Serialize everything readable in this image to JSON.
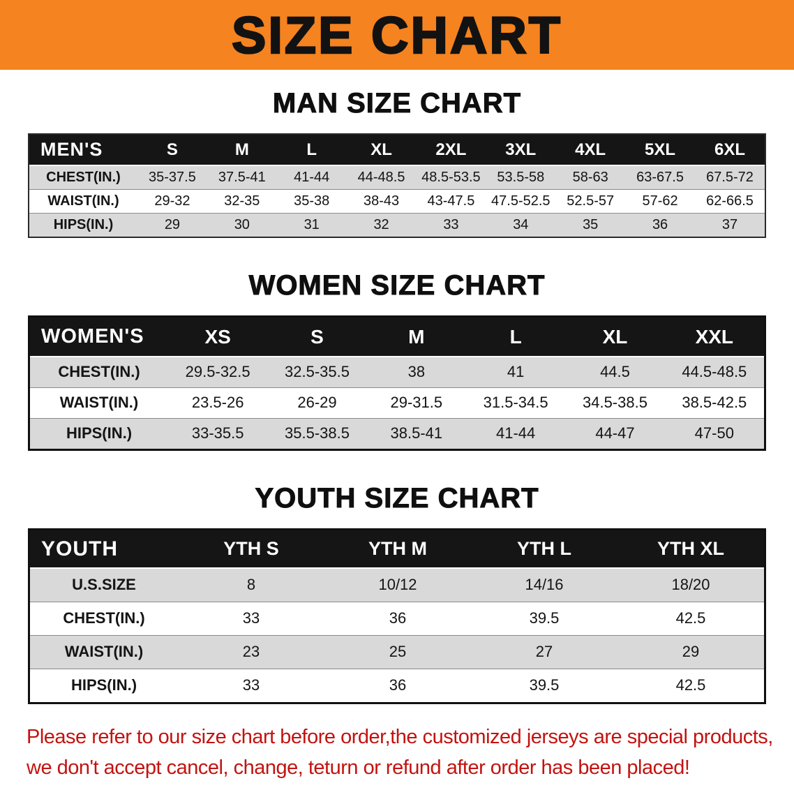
{
  "colors": {
    "banner_bg": "#f5831f",
    "notice_text": "#c31310",
    "header_bg": "#151515",
    "stripe_row": "#d9d9d9"
  },
  "banner": {
    "title": "SIZE CHART"
  },
  "sections": [
    {
      "name": "mens-size-table",
      "heading": "MAN SIZE CHART",
      "label": "MEN'S",
      "sizes": [
        "S",
        "M",
        "L",
        "XL",
        "2XL",
        "3XL",
        "4XL",
        "5XL",
        "6XL"
      ],
      "rows": [
        {
          "label": "CHEST(IN.)",
          "values": [
            "35-37.5",
            "37.5-41",
            "41-44",
            "44-48.5",
            "48.5-53.5",
            "53.5-58",
            "58-63",
            "63-67.5",
            "67.5-72"
          ]
        },
        {
          "label": "WAIST(IN.)",
          "values": [
            "29-32",
            "32-35",
            "35-38",
            "38-43",
            "43-47.5",
            "47.5-52.5",
            "52.5-57",
            "57-62",
            "62-66.5"
          ]
        },
        {
          "label": "HIPS(IN.)",
          "values": [
            "29",
            "30",
            "31",
            "32",
            "33",
            "34",
            "35",
            "36",
            "37"
          ]
        }
      ]
    },
    {
      "name": "womens-size-table",
      "heading": "WOMEN SIZE CHART",
      "label": "WOMEN'S",
      "sizes": [
        "XS",
        "S",
        "M",
        "L",
        "XL",
        "XXL"
      ],
      "rows": [
        {
          "label": "CHEST(IN.)",
          "values": [
            "29.5-32.5",
            "32.5-35.5",
            "38",
            "41",
            "44.5",
            "44.5-48.5"
          ]
        },
        {
          "label": "WAIST(IN.)",
          "values": [
            "23.5-26",
            "26-29",
            "29-31.5",
            "31.5-34.5",
            "34.5-38.5",
            "38.5-42.5"
          ]
        },
        {
          "label": "HIPS(IN.)",
          "values": [
            "33-35.5",
            "35.5-38.5",
            "38.5-41",
            "41-44",
            "44-47",
            "47-50"
          ]
        }
      ]
    },
    {
      "name": "youth-size-table",
      "heading": "YOUTH SIZE CHART",
      "label": "YOUTH",
      "sizes": [
        "YTH S",
        "YTH M",
        "YTH L",
        "YTH XL"
      ],
      "rows": [
        {
          "label": "U.S.SIZE",
          "values": [
            "8",
            "10/12",
            "14/16",
            "18/20"
          ]
        },
        {
          "label": "CHEST(IN.)",
          "values": [
            "33",
            "36",
            "39.5",
            "42.5"
          ]
        },
        {
          "label": "WAIST(IN.)",
          "values": [
            "23",
            "25",
            "27",
            "29"
          ]
        },
        {
          "label": "HIPS(IN.)",
          "values": [
            "33",
            "36",
            "39.5",
            "42.5"
          ]
        }
      ]
    }
  ],
  "footer": {
    "line1": "Please refer to our size chart before order,the customized jerseys are special products,",
    "line2": "we don't accept cancel, change, teturn or refund after order has been placed!"
  }
}
